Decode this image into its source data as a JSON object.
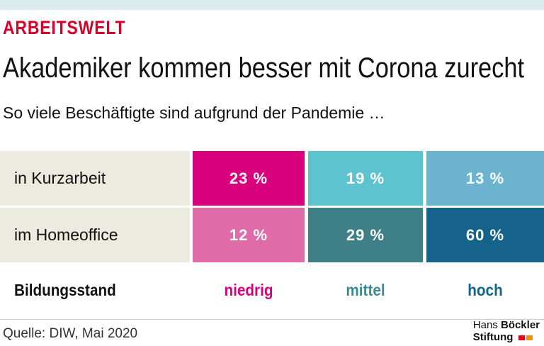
{
  "header": {
    "kicker": "ARBEITSWELT",
    "title": "Akademiker kommen besser mit Corona zurecht",
    "subtitle": "So viele Beschäftigte sind aufgrund der Pandemie …"
  },
  "table": {
    "columns": [
      "Bildungsstand",
      "niedrig",
      "mittel",
      "hoch"
    ],
    "rows": [
      [
        "in Kurzarbeit",
        "23 %",
        "19 %",
        "13 %"
      ],
      [
        "im Homeoffice",
        "12 %",
        "29 %",
        "60 %"
      ]
    ]
  },
  "footer": {
    "source": "Quelle: DIW, Mai 2020",
    "logo_first": "Hans",
    "logo_second": "Böckler",
    "logo_third": "Stiftung"
  }
}
